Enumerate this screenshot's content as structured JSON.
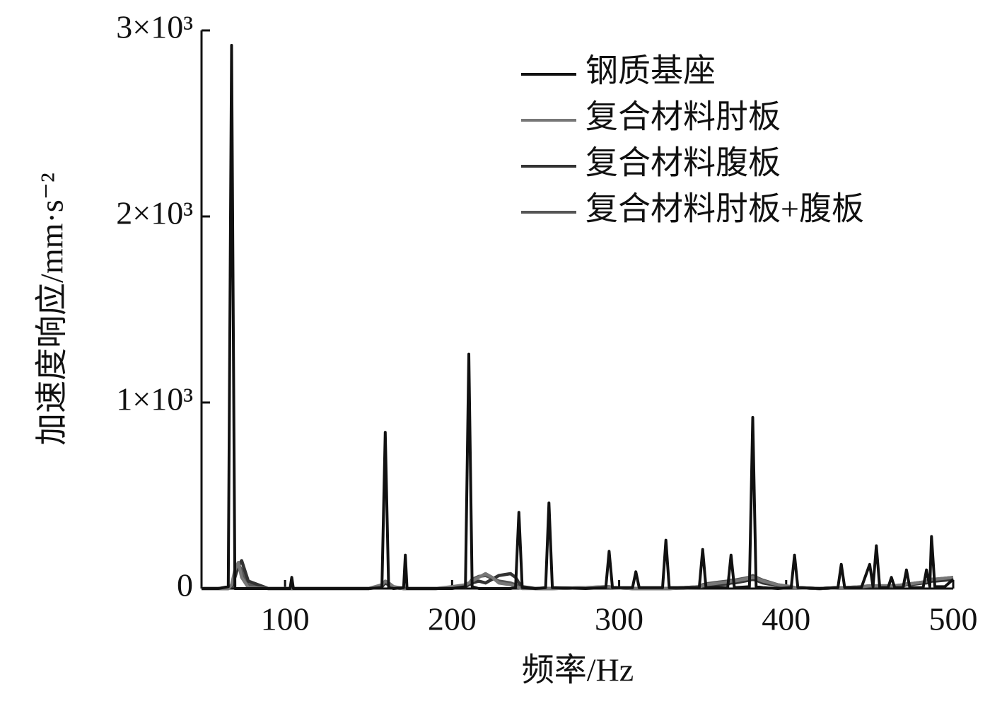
{
  "chart_data": {
    "type": "line",
    "xlabel": "频率/Hz",
    "ylabel": "加速度响应/mm·s⁻²",
    "xlim": [
      50,
      500
    ],
    "xticks": [
      100,
      200,
      300,
      400,
      500
    ],
    "ylim": [
      0,
      3000
    ],
    "yticks": [
      0,
      {
        "value": 1000,
        "label": "1×10³"
      },
      {
        "value": 2000,
        "label": "2×10³"
      },
      {
        "value": 3000,
        "label": "3×10³"
      }
    ],
    "grid": false,
    "legend": "upper right",
    "x": [
      50,
      60,
      66,
      68,
      70,
      72,
      74,
      78,
      90,
      103,
      104,
      105,
      120,
      150,
      158,
      160,
      162,
      165,
      171,
      172,
      173,
      190,
      200,
      208,
      210,
      212,
      216,
      220,
      224,
      228,
      235,
      238,
      240,
      242,
      250,
      256,
      258,
      260,
      280,
      292,
      294,
      296,
      308,
      310,
      312,
      326,
      328,
      330,
      348,
      350,
      352,
      360,
      365,
      367,
      369,
      378,
      380,
      382,
      386,
      395,
      403,
      405,
      407,
      420,
      431,
      433,
      435,
      445,
      450,
      452,
      454,
      456,
      461,
      463,
      465,
      470,
      472,
      474,
      482,
      484,
      486,
      487,
      489,
      495,
      500
    ],
    "series": [
      {
        "name": "钢质基座",
        "color": "#111111",
        "values": [
          0,
          0,
          10,
          2920,
          0,
          0,
          0,
          0,
          0,
          0,
          60,
          0,
          0,
          0,
          5,
          840,
          5,
          0,
          5,
          180,
          0,
          0,
          0,
          10,
          1260,
          10,
          0,
          0,
          0,
          0,
          0,
          5,
          410,
          5,
          0,
          5,
          460,
          5,
          0,
          5,
          200,
          5,
          5,
          90,
          5,
          5,
          260,
          5,
          5,
          210,
          5,
          5,
          5,
          180,
          5,
          10,
          920,
          10,
          5,
          0,
          5,
          180,
          5,
          0,
          5,
          130,
          5,
          5,
          130,
          10,
          230,
          5,
          5,
          60,
          5,
          5,
          100,
          5,
          5,
          100,
          10,
          280,
          10,
          10,
          50
        ]
      },
      {
        "name": "复合材料肘板",
        "color": "#777777",
        "values": [
          0,
          0,
          0,
          20,
          100,
          140,
          60,
          5,
          0,
          0,
          0,
          0,
          0,
          0,
          20,
          40,
          30,
          10,
          0,
          0,
          0,
          0,
          10,
          20,
          30,
          40,
          60,
          80,
          60,
          30,
          20,
          10,
          5,
          0,
          0,
          0,
          0,
          0,
          5,
          10,
          10,
          5,
          0,
          0,
          0,
          0,
          0,
          0,
          10,
          15,
          20,
          30,
          35,
          40,
          40,
          55,
          60,
          55,
          40,
          20,
          10,
          5,
          5,
          0,
          5,
          5,
          5,
          10,
          15,
          15,
          15,
          15,
          15,
          15,
          15,
          20,
          25,
          25,
          35,
          40,
          45,
          50,
          50,
          55,
          60
        ]
      },
      {
        "name": "复合材料腹板",
        "color": "#333333",
        "values": [
          0,
          0,
          0,
          10,
          60,
          120,
          150,
          40,
          0,
          0,
          0,
          0,
          0,
          0,
          10,
          30,
          20,
          5,
          0,
          0,
          0,
          0,
          5,
          10,
          20,
          30,
          40,
          30,
          50,
          70,
          80,
          60,
          30,
          10,
          0,
          0,
          0,
          0,
          5,
          5,
          5,
          5,
          0,
          0,
          0,
          0,
          0,
          0,
          5,
          10,
          15,
          20,
          25,
          30,
          30,
          45,
          50,
          45,
          30,
          15,
          5,
          5,
          5,
          0,
          5,
          5,
          5,
          5,
          10,
          10,
          10,
          10,
          10,
          10,
          10,
          15,
          20,
          20,
          30,
          30,
          35,
          40,
          40,
          45,
          50
        ]
      },
      {
        "name": "复合材料肘板+腹板",
        "color": "#555555",
        "values": [
          0,
          0,
          0,
          15,
          80,
          130,
          100,
          20,
          0,
          0,
          0,
          0,
          0,
          0,
          15,
          35,
          25,
          5,
          0,
          0,
          0,
          0,
          5,
          15,
          25,
          50,
          65,
          70,
          55,
          40,
          30,
          20,
          10,
          5,
          0,
          0,
          0,
          0,
          5,
          10,
          10,
          5,
          0,
          0,
          0,
          0,
          0,
          0,
          10,
          20,
          25,
          35,
          40,
          45,
          45,
          60,
          70,
          60,
          45,
          20,
          10,
          5,
          5,
          0,
          5,
          5,
          5,
          10,
          15,
          15,
          15,
          15,
          15,
          15,
          15,
          20,
          25,
          25,
          35,
          40,
          45,
          50,
          50,
          55,
          60
        ]
      }
    ]
  }
}
